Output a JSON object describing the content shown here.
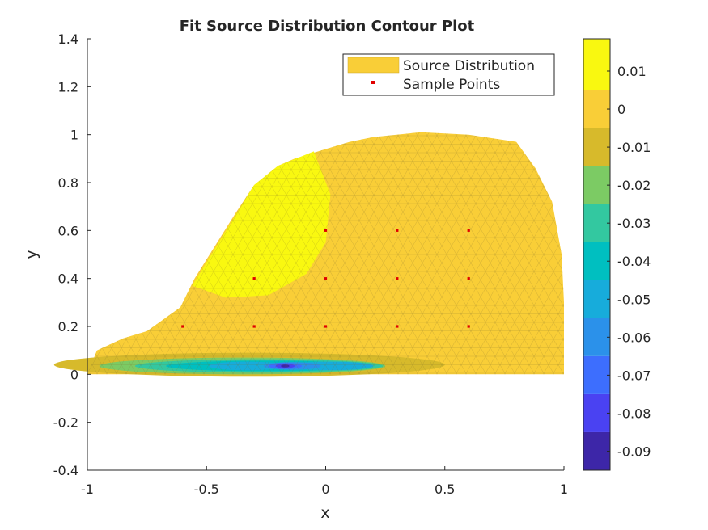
{
  "chart_data": {
    "type": "contour",
    "title": "Fit Source Distribution Contour Plot",
    "xlabel": "x",
    "ylabel": "y",
    "xlim": [
      -1,
      1
    ],
    "ylim": [
      -0.4,
      1.4
    ],
    "xticks": [
      -1,
      -0.5,
      0,
      0.5,
      1
    ],
    "xtick_labels": [
      "-1",
      "-0.5",
      "0",
      "0.5",
      "1"
    ],
    "yticks": [
      1.4,
      1.2,
      1,
      0.8,
      0.6,
      0.4,
      0.2,
      0,
      -0.2,
      -0.4
    ],
    "ytick_labels": [
      "1.4",
      "1.2",
      "1",
      "0.8",
      "0.6",
      "0.4",
      "0.2",
      "0",
      "-0.2",
      "-0.4"
    ],
    "grid": false,
    "legend": {
      "position": "top-right",
      "entries": [
        {
          "label": "Source Distribution",
          "color": "#F9CE37"
        },
        {
          "label": "Sample Points",
          "color": "#E00000"
        }
      ]
    },
    "domain_outline": [
      [
        -1.0,
        0.0
      ],
      [
        -0.96,
        0.1
      ],
      [
        -0.85,
        0.15
      ],
      [
        -0.75,
        0.18
      ],
      [
        -0.61,
        0.28
      ],
      [
        -0.55,
        0.4
      ],
      [
        -0.38,
        0.67
      ],
      [
        -0.3,
        0.79
      ],
      [
        -0.2,
        0.87
      ],
      [
        -0.13,
        0.9
      ],
      [
        0.0,
        0.94
      ],
      [
        0.1,
        0.97
      ],
      [
        0.2,
        0.99
      ],
      [
        0.4,
        1.01
      ],
      [
        0.6,
        1.0
      ],
      [
        0.8,
        0.97
      ],
      [
        0.88,
        0.86
      ],
      [
        0.95,
        0.72
      ],
      [
        0.99,
        0.5
      ],
      [
        1.0,
        0.3
      ],
      [
        1.0,
        0.0
      ]
    ],
    "high_region_outline": [
      [
        -0.56,
        0.37
      ],
      [
        -0.3,
        0.79
      ],
      [
        -0.2,
        0.87
      ],
      [
        -0.05,
        0.93
      ],
      [
        0.02,
        0.75
      ],
      [
        0.0,
        0.55
      ],
      [
        -0.08,
        0.42
      ],
      [
        -0.24,
        0.33
      ],
      [
        -0.42,
        0.32
      ]
    ],
    "sample_points": {
      "x": [
        -0.6,
        -0.3,
        0,
        0.3,
        0.6,
        -0.3,
        0,
        0.3,
        0.6,
        0,
        0.3,
        0.6
      ],
      "y": [
        0.2,
        0.2,
        0.2,
        0.2,
        0.2,
        0.4,
        0.4,
        0.4,
        0.4,
        0.6,
        0.6,
        0.6
      ]
    },
    "colorbar": {
      "range": [
        -0.095,
        0.0185
      ],
      "levels": [
        -0.09,
        -0.08,
        -0.07,
        -0.06,
        -0.05,
        -0.04,
        -0.03,
        -0.02,
        -0.01,
        0,
        0.01
      ],
      "tick_labels": [
        "-0.09",
        "-0.08",
        "-0.07",
        "-0.06",
        "-0.05",
        "-0.04",
        "-0.03",
        "-0.02",
        "-0.01",
        "0",
        "0.01"
      ],
      "colors": [
        "#3D26A8",
        "#4A42F2",
        "#3D6EFE",
        "#2B91EA",
        "#17ACDB",
        "#00BFC0",
        "#33C8A0",
        "#7CCB64",
        "#D7BA2B",
        "#F9CE37",
        "#F9F810"
      ]
    }
  }
}
